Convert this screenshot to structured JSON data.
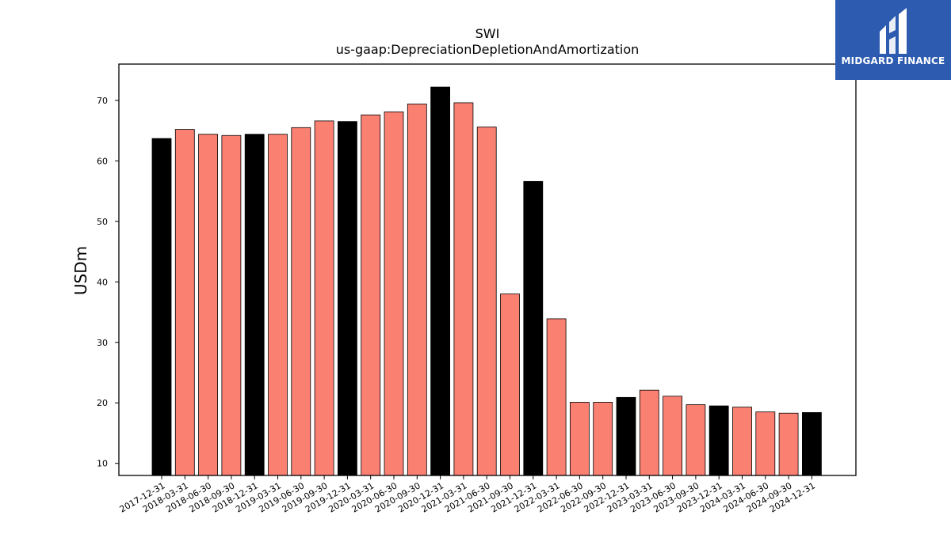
{
  "brand": {
    "name": "MIDGARD FINANCE",
    "bg_color": "#2d5bb0"
  },
  "chart_data": {
    "type": "bar",
    "title": "SWI",
    "subtitle": "us-gaap:DepreciationDepletionAndAmortization",
    "xlabel": "",
    "ylabel": "USDm",
    "ylim": [
      8,
      76
    ],
    "yticks": [
      10,
      20,
      30,
      40,
      50,
      60,
      70
    ],
    "grid": false,
    "colors": {
      "annual": "#000000",
      "quarterly": "#fa8072"
    },
    "categories": [
      "2017-12-31",
      "2018-03-31",
      "2018-06-30",
      "2018-09-30",
      "2018-12-31",
      "2019-03-31",
      "2019-06-30",
      "2019-09-30",
      "2019-12-31",
      "2020-03-31",
      "2020-06-30",
      "2020-09-30",
      "2020-12-31",
      "2021-03-31",
      "2021-06-30",
      "2021-09-30",
      "2021-12-31",
      "2022-03-31",
      "2022-06-30",
      "2022-09-30",
      "2022-12-31",
      "2023-03-31",
      "2023-06-30",
      "2023-09-30",
      "2023-12-31",
      "2024-03-31",
      "2024-06-30",
      "2024-09-30",
      "2024-12-31"
    ],
    "values": [
      63.7,
      65.2,
      64.4,
      64.2,
      64.4,
      64.4,
      65.5,
      66.6,
      66.5,
      67.6,
      68.1,
      69.4,
      72.2,
      69.6,
      65.6,
      38.0,
      56.6,
      33.9,
      20.1,
      20.1,
      20.9,
      22.1,
      21.1,
      19.7,
      19.5,
      19.3,
      18.5,
      18.3,
      18.4
    ],
    "bar_kind": [
      "annual",
      "quarterly",
      "quarterly",
      "quarterly",
      "annual",
      "quarterly",
      "quarterly",
      "quarterly",
      "annual",
      "quarterly",
      "quarterly",
      "quarterly",
      "annual",
      "quarterly",
      "quarterly",
      "quarterly",
      "annual",
      "quarterly",
      "quarterly",
      "quarterly",
      "annual",
      "quarterly",
      "quarterly",
      "quarterly",
      "annual",
      "quarterly",
      "quarterly",
      "quarterly",
      "annual"
    ]
  }
}
